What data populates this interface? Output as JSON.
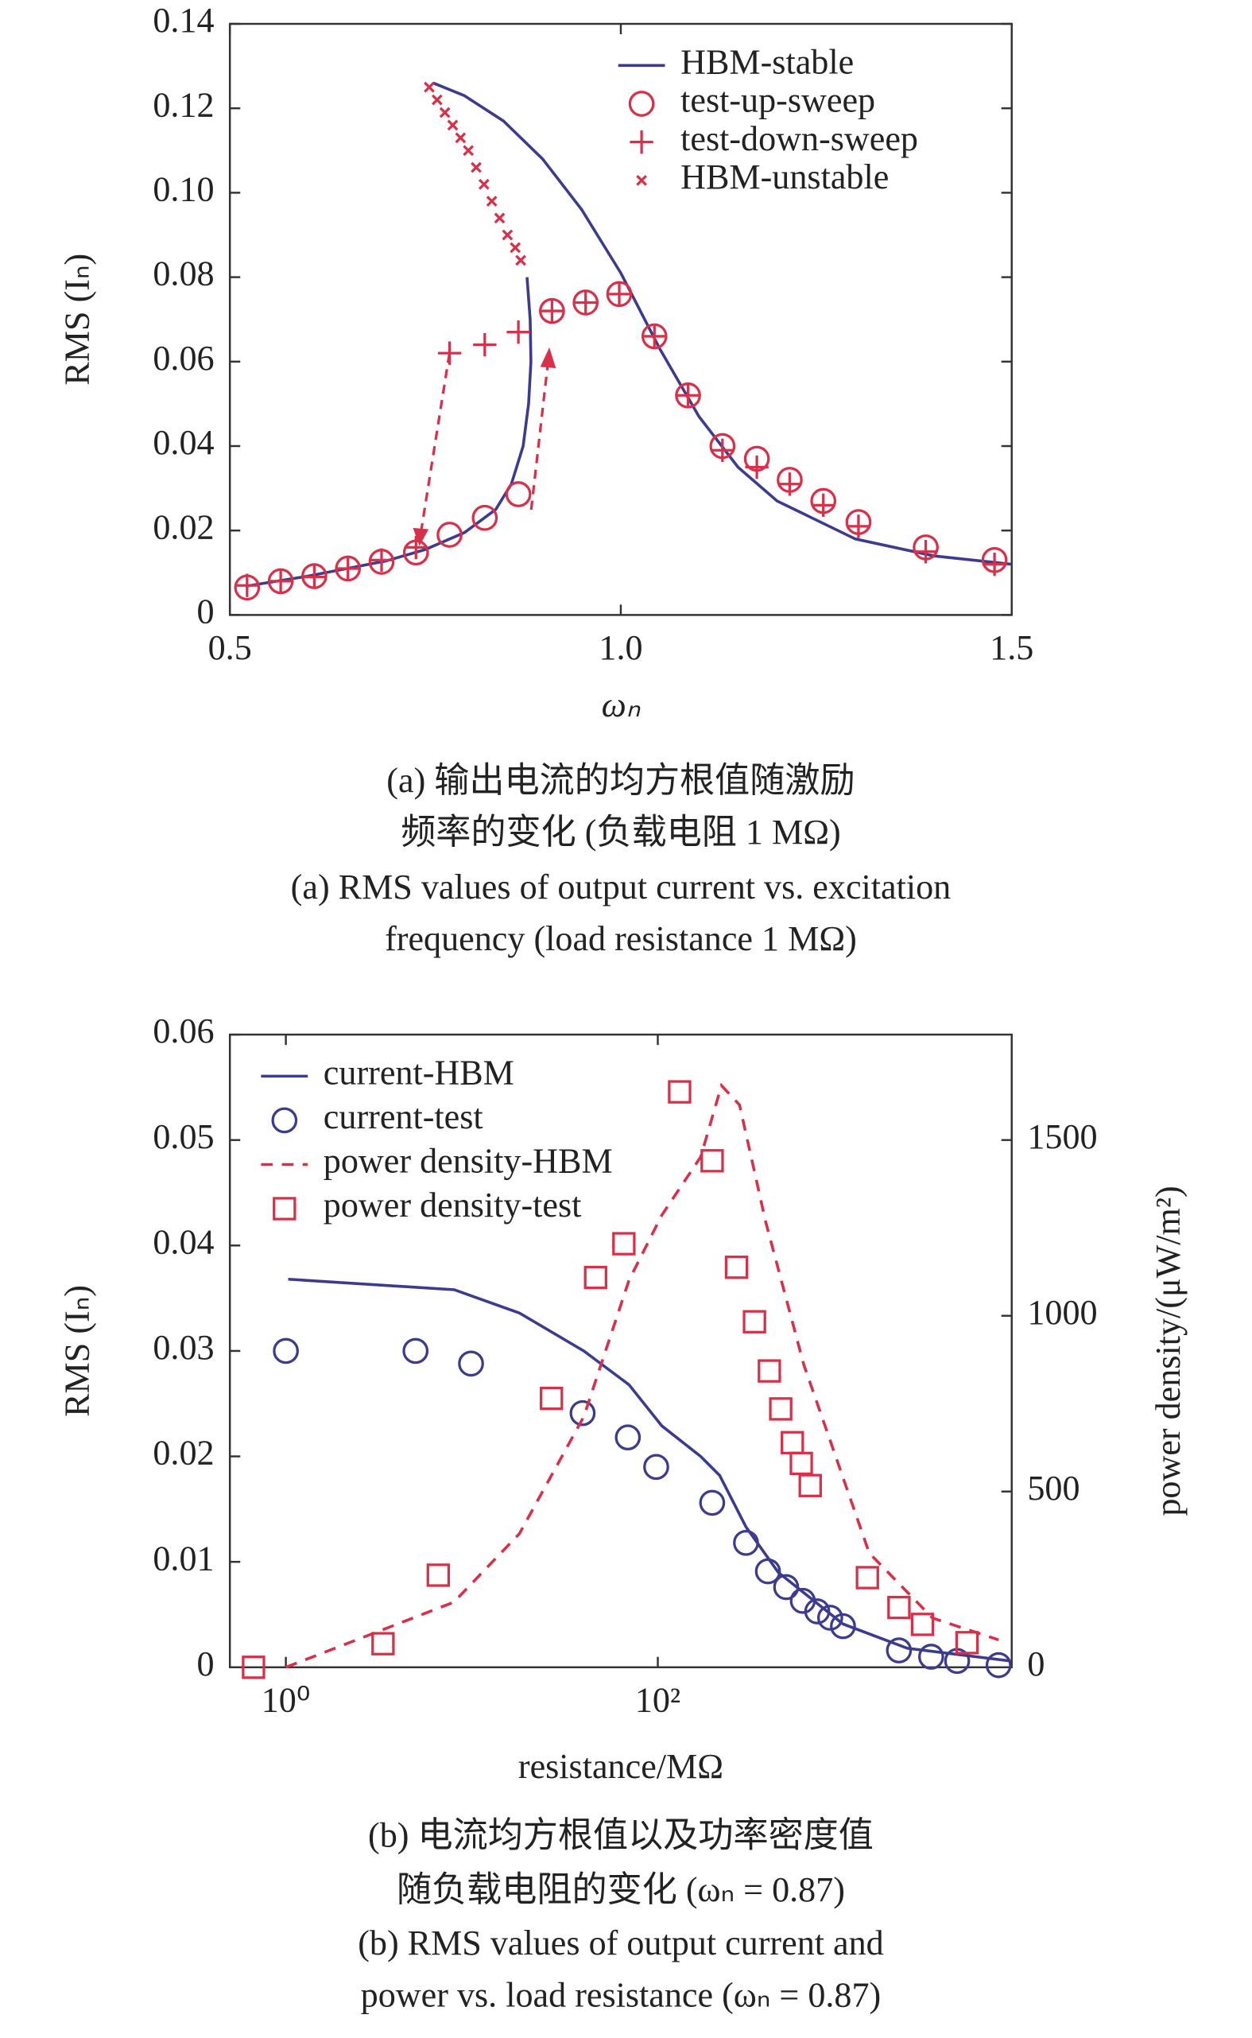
{
  "chart_data": [
    {
      "type": "line",
      "xlabel": "ωₙ",
      "ylabel": "RMS (Iₙ)",
      "xlim": [
        0.5,
        1.5
      ],
      "xticks": [
        0.5,
        {
          "value": 1,
          "label": "1.0"
        },
        1.5
      ],
      "ylim": [
        0,
        0.14
      ],
      "yticks": [
        0,
        0.02,
        0.04,
        0.06,
        0.08,
        {
          "value": 0.1,
          "label": "0.10"
        },
        0.12,
        0.14
      ],
      "legend": "upper right",
      "caption": [
        "(a) 输出电流的均方根值随激励",
        "频率的变化 (负载电阻 1 MΩ)",
        "(a) RMS values of output current vs. excitation",
        "frequency (load resistance 1 MΩ)"
      ],
      "series": [
        {
          "name": "HBM-stable",
          "color": "#3b3b8f",
          "line": "solid",
          "x": [
            0.52,
            0.6,
            0.7,
            0.75,
            0.8,
            0.84,
            0.86,
            0.875,
            0.882,
            0.885,
            0.884,
            0.88,
            null,
            0.76,
            0.8,
            0.85,
            0.9,
            0.95,
            1.0,
            1.05,
            1.1,
            1.15,
            1.2,
            1.3,
            1.4,
            1.5
          ],
          "values": [
            0.0068,
            0.0092,
            0.0128,
            0.0155,
            0.0195,
            0.025,
            0.031,
            0.04,
            0.05,
            0.06,
            0.07,
            0.08,
            null,
            0.126,
            0.123,
            0.117,
            0.108,
            0.096,
            0.081,
            0.063,
            0.047,
            0.035,
            0.027,
            0.018,
            0.014,
            0.012
          ]
        },
        {
          "name": "test-up-sweep",
          "color": "#d9304a",
          "marker": "circle",
          "x": [
            0.522,
            0.565,
            0.608,
            0.651,
            0.694,
            0.738,
            0.781,
            0.826,
            0.869,
            0.912,
            0.955,
            0.998,
            1.043,
            1.086,
            1.13,
            1.174,
            1.216,
            1.259,
            1.304,
            1.39,
            1.478
          ],
          "values": [
            0.0065,
            0.008,
            0.0092,
            0.011,
            0.0126,
            0.0148,
            0.019,
            0.023,
            0.0286,
            0.072,
            0.074,
            0.076,
            0.066,
            0.052,
            0.04,
            0.037,
            0.032,
            0.027,
            0.022,
            0.016,
            0.013
          ]
        },
        {
          "name": "test-down-sweep",
          "color": "#d9304a",
          "marker": "plus",
          "x": [
            0.522,
            0.565,
            0.608,
            0.651,
            0.694,
            0.738,
            0.781,
            0.826,
            0.869,
            0.912,
            0.955,
            0.998,
            1.043,
            1.086,
            1.13,
            1.174,
            1.216,
            1.259,
            1.304,
            1.39,
            1.478
          ],
          "values": [
            0.007,
            0.008,
            0.009,
            0.011,
            0.013,
            0.016,
            0.062,
            0.064,
            0.067,
            0.072,
            0.074,
            0.076,
            0.066,
            0.052,
            0.039,
            0.035,
            0.031,
            0.026,
            0.021,
            0.015,
            0.012
          ]
        },
        {
          "name": "HBM-unstable",
          "color": "#d9304a",
          "marker": "x",
          "x": [
            0.755,
            0.765,
            0.775,
            0.785,
            0.795,
            0.805,
            0.815,
            0.825,
            0.835,
            0.845,
            0.855,
            0.865,
            0.872
          ],
          "values": [
            0.125,
            0.122,
            0.119,
            0.116,
            0.113,
            0.11,
            0.106,
            0.102,
            0.098,
            0.094,
            0.09,
            0.087,
            0.084
          ]
        }
      ]
    },
    {
      "type": "line",
      "xlabel": "resistance/MΩ",
      "ylabel": "RMS (Iₙ)",
      "y2label": "power density/(μW/m²)",
      "xscale": "log",
      "xlim": [
        0.5,
        8000
      ],
      "xticks": [
        {
          "value": 1,
          "label": "10⁰"
        },
        {
          "value": 100,
          "label": "10²"
        }
      ],
      "ylim": [
        0,
        0.06
      ],
      "yticks": [
        0,
        0.01,
        0.02,
        0.03,
        0.04,
        0.05,
        0.06
      ],
      "y2lim": [
        0,
        1800
      ],
      "y2ticks": [
        0,
        500,
        1000,
        1500
      ],
      "legend": "upper left",
      "caption": [
        "(b) 电流均方根值以及功率密度值",
        "随负载电阻的变化 (ωₙ = 0.87)",
        "(b) RMS values of output current and",
        "power vs. load resistance (ωₙ = 0.87)"
      ],
      "series": [
        {
          "name": "current-HBM",
          "color": "#3b3b8f",
          "line": "solid",
          "x": [
            1.03,
            8.05,
            18,
            40,
            70,
            105,
            170,
            215,
            298,
            445,
            990,
            2200,
            7800
          ],
          "values": [
            0.0368,
            0.0358,
            0.0336,
            0.03,
            0.0268,
            0.0229,
            0.02,
            0.0182,
            0.0133,
            0.009,
            0.0041,
            0.0018,
            0.0006
          ]
        },
        {
          "name": "current-test",
          "color": "#3b3b8f",
          "marker": "circle",
          "x": [
            1,
            4.98,
            9.9,
            39.4,
            69,
            98,
            196,
            298,
            391,
            490,
            602,
            720,
            845,
            990,
            1980,
            2950,
            4070,
            6800
          ],
          "values": [
            0.03,
            0.03,
            0.0288,
            0.0241,
            0.0218,
            0.019,
            0.0156,
            0.0118,
            0.0091,
            0.0076,
            0.0063,
            0.0053,
            0.0047,
            0.0039,
            0.0016,
            0.001,
            0.0006,
            0.0002
          ]
        },
        {
          "name": "power density-HBM",
          "color": "#d9304a",
          "line": "dashed",
          "axis": "y2",
          "x": [
            1,
            8,
            18,
            40,
            70,
            105,
            170,
            220,
            275,
            380,
            610,
            1370,
            3000,
            6800
          ],
          "values": [
            0,
            185,
            380,
            713,
            1101,
            1286,
            1452,
            1655,
            1600,
            1268,
            861,
            325,
            140,
            78
          ]
        },
        {
          "name": "power density-test",
          "color": "#d9304a",
          "marker": "square",
          "axis": "y2",
          "x": [
            0.67,
            3.33,
            6.6,
            26.8,
            46.3,
            65.7,
            131,
            196,
            265,
            331,
            398,
            458,
            529,
            591,
            660,
            1340,
            1980,
            2650,
            4600
          ],
          "values": [
            0,
            67,
            262,
            765,
            1109,
            1205,
            1637,
            1441,
            1138,
            983,
            843,
            735,
            639,
            580,
            517,
            255,
            170,
            122,
            70
          ]
        }
      ]
    }
  ]
}
